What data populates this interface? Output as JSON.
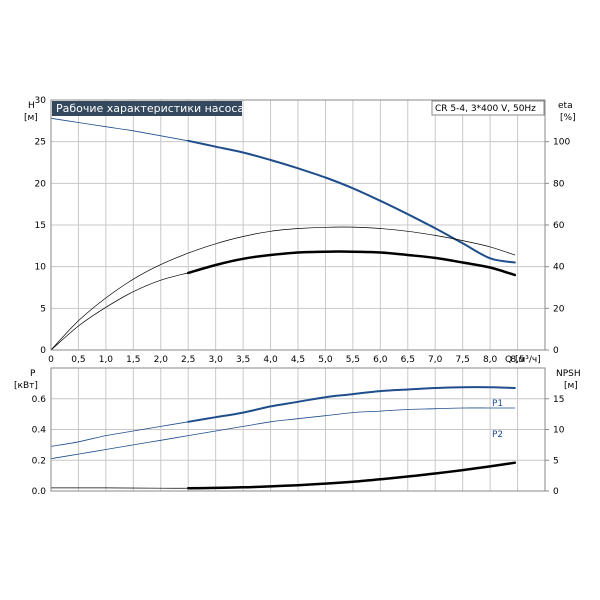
{
  "colors": {
    "blue": "#1f4e8c",
    "black": "#000000",
    "title_bg": "#34495e",
    "grid": "#c8c8c8"
  },
  "top": {
    "title": "Рабочие характеристики насоса",
    "info": "CR 5-4, 3*400 V, 50Hz",
    "left_axis_label": "H",
    "left_axis_unit": "[м]",
    "right_axis_label": "eta",
    "right_axis_unit": "[%]",
    "x_axis_label": "Q [м³/ч]"
  },
  "bottom": {
    "left_axis_label": "P",
    "left_axis_unit": "[кВт]",
    "right_axis_label": "NPSH",
    "right_axis_unit": "[м]",
    "label_p1": "P1",
    "label_p2": "P2"
  },
  "chart_data": [
    {
      "type": "line",
      "x_ticks": [
        "0",
        "0,5",
        "1,0",
        "1,5",
        "2,0",
        "2,5",
        "3,0",
        "3,5",
        "4,0",
        "4,5",
        "5,0",
        "5,5",
        "6,0",
        "6,5",
        "7,0",
        "7,5",
        "8,0",
        "8,5"
      ],
      "xlim": [
        0,
        9.0
      ],
      "y_ticks": [
        "0",
        "5",
        "10",
        "15",
        "20",
        "25",
        "30"
      ],
      "ylim": [
        0,
        30
      ],
      "y2_ticks": [
        "0",
        "20",
        "40",
        "60",
        "80",
        "100"
      ],
      "y2lim": [
        0,
        120
      ],
      "grid": true,
      "series": [
        {
          "name": "",
          "axis": "left",
          "color": "blue",
          "width": 0.8,
          "x": [
            0,
            0.5,
            1.0,
            1.5,
            2.0,
            2.5
          ],
          "y": [
            27.8,
            27.3,
            26.8,
            26.3,
            25.7,
            25.1
          ]
        },
        {
          "name": "",
          "axis": "left",
          "color": "blue",
          "width": 2,
          "x": [
            2.5,
            3.0,
            3.5,
            4.0,
            4.5,
            5.0,
            5.5,
            6.0,
            6.5,
            7.0,
            7.5,
            8.0,
            8.45
          ],
          "y": [
            25.1,
            24.4,
            23.7,
            22.8,
            21.8,
            20.7,
            19.4,
            17.9,
            16.3,
            14.6,
            12.8,
            11.0,
            10.5
          ]
        },
        {
          "name": "",
          "axis": "right",
          "color": "black",
          "width": 0.7,
          "x": [
            0,
            0.5,
            1.0,
            1.5,
            2.0,
            2.5,
            3.0,
            3.5,
            4.0,
            4.5,
            5.0,
            5.5,
            6.0,
            6.5,
            7.0,
            7.5,
            8.0,
            8.45
          ],
          "y": [
            0,
            14,
            25,
            34,
            41,
            46.5,
            51,
            54.5,
            57,
            58.3,
            58.9,
            59,
            58.3,
            57,
            55,
            52.5,
            49.5,
            45.6
          ]
        },
        {
          "name": "",
          "axis": "right",
          "color": "black",
          "width": 0.7,
          "x": [
            0,
            0.5,
            1.0,
            1.5,
            2.0,
            2.5
          ],
          "y": [
            0,
            11.5,
            20.5,
            28,
            33.5,
            37
          ]
        },
        {
          "name": "",
          "axis": "right",
          "color": "black",
          "width": 2.5,
          "x": [
            2.5,
            3.0,
            3.5,
            4.0,
            4.5,
            5.0,
            5.5,
            6.0,
            6.5,
            7.0,
            7.5,
            8.0,
            8.45
          ],
          "y": [
            37,
            40.8,
            43.8,
            45.6,
            46.8,
            47.2,
            47.2,
            46.8,
            45.6,
            44.2,
            42,
            39.6,
            36
          ]
        }
      ]
    },
    {
      "type": "line",
      "xlim": [
        0,
        9.0
      ],
      "y_ticks": [
        "0.0",
        "0.2",
        "0.4",
        "0.6"
      ],
      "ylim": [
        0,
        0.8
      ],
      "y2_ticks": [
        "0",
        "5",
        "10",
        "15"
      ],
      "y2lim": [
        0,
        20
      ],
      "grid": true,
      "series": [
        {
          "name": "P1",
          "axis": "left",
          "color": "blue",
          "width": 0.8,
          "x": [
            0,
            0.5,
            1.0,
            1.5,
            2.0,
            2.5
          ],
          "y": [
            0.29,
            0.32,
            0.36,
            0.39,
            0.42,
            0.45
          ]
        },
        {
          "name": "P1",
          "axis": "left",
          "color": "blue",
          "width": 2,
          "x": [
            2.5,
            3.0,
            3.5,
            4.0,
            4.5,
            5.0,
            5.5,
            6.0,
            6.5,
            7.0,
            7.5,
            8.0,
            8.45
          ],
          "y": [
            0.45,
            0.48,
            0.51,
            0.55,
            0.58,
            0.61,
            0.63,
            0.65,
            0.66,
            0.67,
            0.675,
            0.675,
            0.67
          ]
        },
        {
          "name": "P2",
          "axis": "left",
          "color": "blue",
          "width": 0.8,
          "x": [
            0,
            0.5,
            1.0,
            1.5,
            2.0,
            2.5,
            3.0,
            3.5,
            4.0,
            4.5,
            5.0,
            5.5,
            6.0,
            6.5,
            7.0,
            7.5,
            8.0,
            8.45
          ],
          "y": [
            0.21,
            0.24,
            0.27,
            0.3,
            0.33,
            0.36,
            0.39,
            0.42,
            0.45,
            0.47,
            0.49,
            0.51,
            0.52,
            0.53,
            0.535,
            0.54,
            0.54,
            0.54
          ]
        },
        {
          "name": "",
          "axis": "right",
          "color": "black",
          "width": 0.7,
          "x": [
            0,
            1.0,
            2.0,
            2.5
          ],
          "y": [
            0.5,
            0.5,
            0.45,
            0.45
          ]
        },
        {
          "name": "",
          "axis": "right",
          "color": "black",
          "width": 2.5,
          "x": [
            2.5,
            3.0,
            3.5,
            4.0,
            4.5,
            5.0,
            5.5,
            6.0,
            6.5,
            7.0,
            7.5,
            8.0,
            8.45
          ],
          "y": [
            0.45,
            0.5,
            0.6,
            0.75,
            0.95,
            1.2,
            1.5,
            1.9,
            2.35,
            2.85,
            3.4,
            4.0,
            4.6
          ]
        }
      ]
    }
  ]
}
